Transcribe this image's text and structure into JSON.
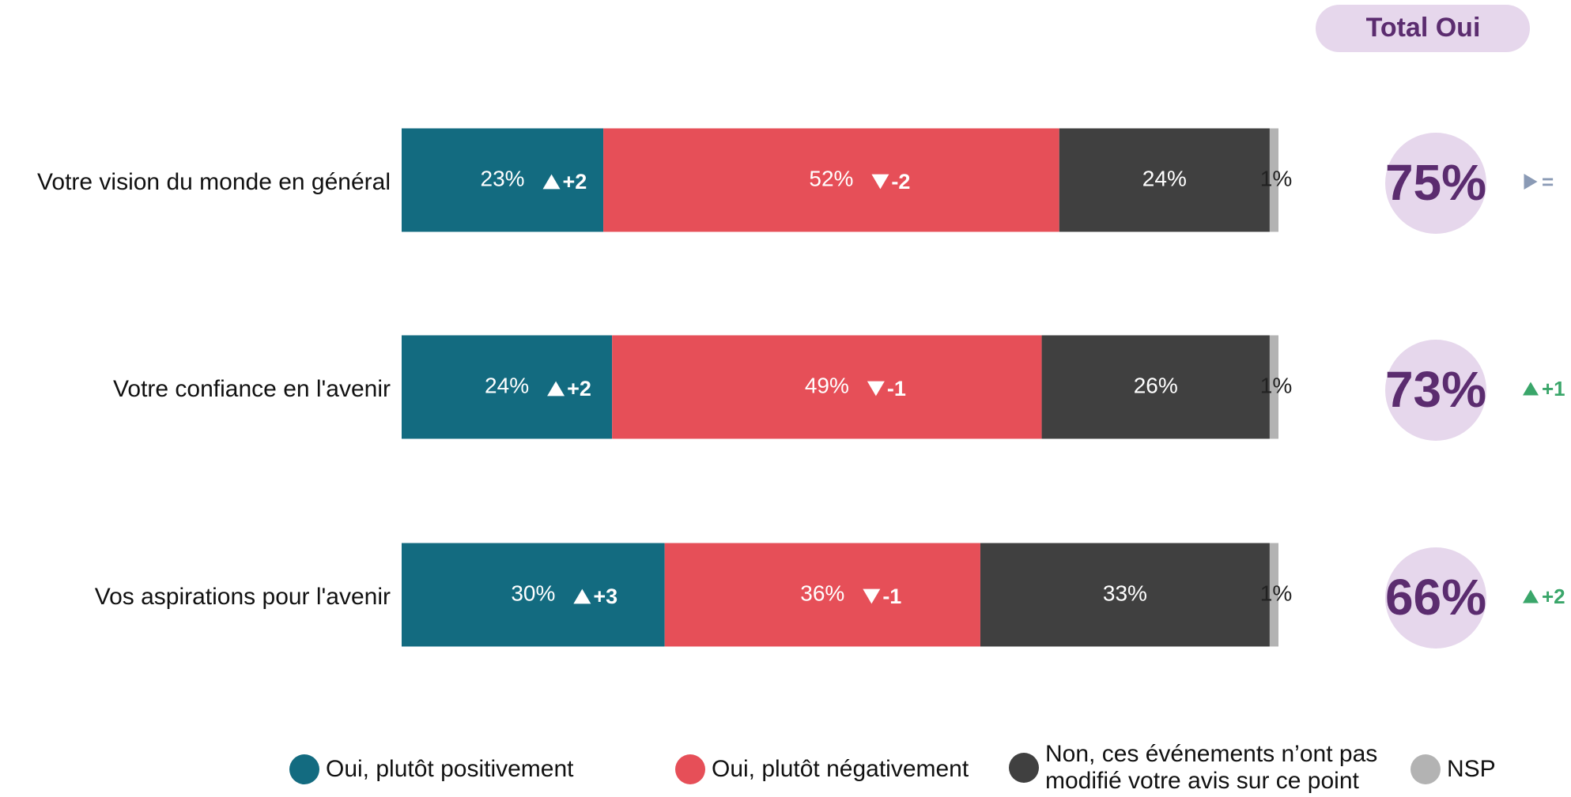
{
  "chart_data": {
    "type": "stacked_barh",
    "categories": [
      "Votre vision du monde en général",
      "Votre confiance en l'avenir",
      "Vos aspirations pour l'avenir"
    ],
    "xlim": [
      0,
      100
    ],
    "series": [
      {
        "name": "Oui, plutôt positivement",
        "color": "#136b80",
        "values": [
          23,
          24,
          30
        ],
        "value_labels": [
          "23%",
          "24%",
          "30%"
        ],
        "deltas": [
          2,
          2,
          3
        ],
        "delta_labels": [
          "+2",
          "+2",
          "+3"
        ]
      },
      {
        "name": "Oui, plutôt négativement",
        "color": "#e64f58",
        "values": [
          52,
          49,
          36
        ],
        "value_labels": [
          "52%",
          "49%",
          "36%"
        ],
        "deltas": [
          -2,
          -1,
          -1
        ],
        "delta_labels": [
          "-2",
          "-1",
          "-1"
        ]
      },
      {
        "name": "Non, ces événements n’ont pas modifié votre avis sur ce point",
        "color": "#404040",
        "values": [
          24,
          26,
          33
        ],
        "value_labels": [
          "24%",
          "26%",
          "33%"
        ]
      },
      {
        "name": "NSP",
        "color": "#b3b3b3",
        "values": [
          1,
          1,
          1
        ],
        "value_labels": [
          "1%",
          "1%",
          "1%"
        ]
      }
    ],
    "totals": {
      "title": "Total Oui",
      "values": [
        75,
        73,
        66
      ],
      "value_labels": [
        "75%",
        "73%",
        "66%"
      ],
      "deltas": [
        0,
        1,
        2
      ],
      "delta_labels": [
        "=",
        "+1",
        "+2"
      ]
    }
  }
}
